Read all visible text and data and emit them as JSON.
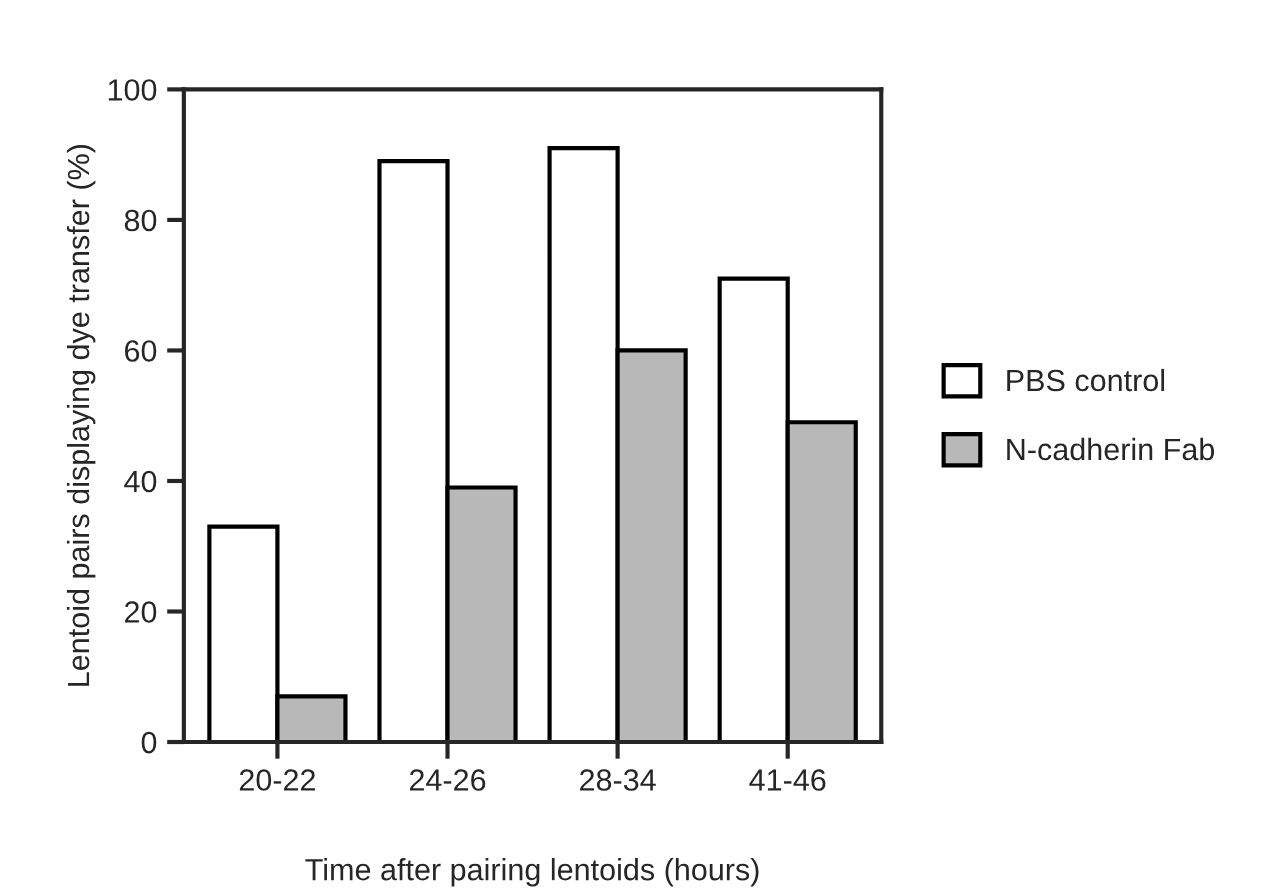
{
  "chart_data": {
    "type": "bar",
    "xlabel": "Time after pairing lentoids (hours)",
    "ylabel": "Lentoid pairs displaying dye transfer (%)",
    "categories": [
      "20-22",
      "24-26",
      "28-34",
      "41-46"
    ],
    "series": [
      {
        "name": "PBS control",
        "color": "#ffffff",
        "values": [
          33,
          89,
          91,
          71
        ]
      },
      {
        "name": "N-cadherin Fab",
        "color": "#b8b8b8",
        "values": [
          7,
          39,
          60,
          49
        ]
      }
    ],
    "ylim": [
      0,
      100
    ],
    "yticks": [
      0,
      20,
      40,
      60,
      80,
      100
    ],
    "grid": false,
    "legend": "right"
  }
}
